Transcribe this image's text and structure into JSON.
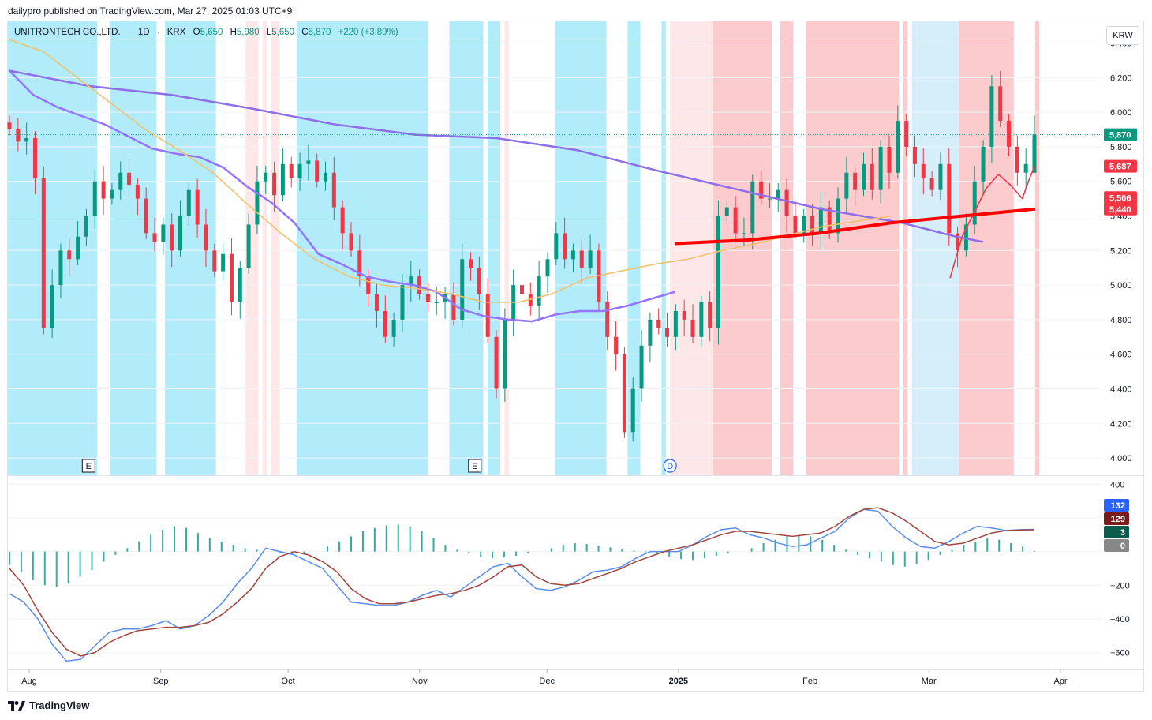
{
  "header": {
    "published": "dailypro published on TradingView.com, Mar 27, 2025 01:03 UTC+9"
  },
  "legend": {
    "symbol": "UNITRONTECH CO.,LTD.",
    "interval": "1D",
    "exchange": "KRX",
    "o_label": "O",
    "o": "5,650",
    "h_label": "H",
    "h": "5,980",
    "l_label": "L",
    "l": "5,650",
    "c_label": "C",
    "c": "5,870",
    "change": "+220 (+3.89%)"
  },
  "currency": "KRW",
  "footer": {
    "brand": "TradingView",
    "logo_icon": "tradingview-logo-icon"
  },
  "colors": {
    "up": "#089981",
    "down": "#f23645",
    "bg_blue": "#b2ebf9",
    "bg_lightblue": "#d6eefa",
    "bg_red": "#fccbcd",
    "bg_pink": "#fde7e8"
  },
  "chart_data": [
    {
      "type": "candlestick",
      "y_axis": {
        "ticks": [
          4000,
          4200,
          4400,
          4600,
          4800,
          5000,
          5200,
          5400,
          5600,
          5800,
          6000,
          6200,
          6400
        ],
        "tick_labels": [
          "4,000",
          "4,200",
          "4,400",
          "4,600",
          "4,800",
          "5,000",
          "5,200",
          "5,400",
          "5,600",
          "5,800",
          "6,000",
          "6,200",
          "6,400"
        ],
        "ylim": [
          3900,
          6480
        ]
      },
      "x_axis": {
        "labels": [
          "Aug",
          "Sep",
          "Oct",
          "Nov",
          "Dec",
          "2025",
          "Feb",
          "Mar",
          "Apr"
        ],
        "label_dates": [
          "2024-08-01",
          "2024-09-01",
          "2024-10-01",
          "2024-11-01",
          "2024-12-01",
          "2025-01-01",
          "2025-02-01",
          "2025-03-01",
          "2025-04-01"
        ]
      },
      "price_labels": [
        {
          "text": "5,870",
          "value": 5870,
          "color": "#089981"
        },
        {
          "text": "5,687",
          "value": 5687,
          "color": "#f23645"
        },
        {
          "text": "5,506",
          "value": 5506,
          "color": "#f23645"
        },
        {
          "text": "5,440",
          "value": 5440,
          "color": "#f23645"
        }
      ],
      "close_approx": [
        5900,
        5830,
        5850,
        5620,
        4750,
        5000,
        5200,
        5150,
        5280,
        5400,
        5600,
        5500,
        5550,
        5650,
        5580,
        5500,
        5300,
        5250,
        5350,
        5200,
        5400,
        5550,
        5350,
        5200,
        5080,
        5180,
        4900,
        5100,
        5350,
        5600,
        5650,
        5520,
        5700,
        5620,
        5700,
        5720,
        5600,
        5650,
        5450,
        5300,
        5200,
        5050,
        4950,
        4850,
        4700,
        4800,
        5000,
        5050,
        4950,
        4900,
        4900,
        4950,
        4800,
        5150,
        5100,
        4950,
        4700,
        4400,
        4800,
        5000,
        4950,
        4880,
        5050,
        5150,
        5300,
        5150,
        5200,
        5100,
        5200,
        4900,
        4700,
        4600,
        4150,
        4400,
        4650,
        4800,
        4750,
        4700,
        4850,
        4800,
        4700,
        4900,
        4750,
        5400,
        5450,
        5300,
        5300,
        5600,
        5500,
        5500,
        5550,
        5400,
        5300,
        5400,
        5300,
        5450,
        5300,
        5500,
        5650,
        5550,
        5700,
        5550,
        5800,
        5650,
        5950,
        5800,
        5700,
        5620,
        5550,
        5700,
        5300,
        5200,
        5350,
        5600,
        5800,
        6150,
        5950,
        5800,
        5650,
        5700,
        5870
      ],
      "background_segments": [
        {
          "start": "2024-07-22",
          "end": "2024-08-15",
          "color": "bg_blue"
        },
        {
          "start": "2024-08-15",
          "end": "2024-08-17",
          "color": "bg_blue"
        },
        {
          "start": "2024-08-20",
          "end": "2024-08-31",
          "color": "bg_blue"
        },
        {
          "start": "2024-09-02",
          "end": "2024-09-14",
          "color": "bg_blue"
        },
        {
          "start": "2024-09-21",
          "end": "2024-09-24",
          "color": "bg_pink"
        },
        {
          "start": "2024-09-25",
          "end": "2024-09-26",
          "color": "bg_pink"
        },
        {
          "start": "2024-09-27",
          "end": "2024-09-29",
          "color": "bg_pink"
        },
        {
          "start": "2024-10-03",
          "end": "2024-11-03",
          "color": "bg_blue"
        },
        {
          "start": "2024-11-08",
          "end": "2024-11-16",
          "color": "bg_blue"
        },
        {
          "start": "2024-11-17",
          "end": "2024-11-20",
          "color": "bg_blue"
        },
        {
          "start": "2024-11-21",
          "end": "2024-11-22",
          "color": "bg_pink"
        },
        {
          "start": "2024-12-03",
          "end": "2024-12-15",
          "color": "bg_blue"
        },
        {
          "start": "2024-12-20",
          "end": "2024-12-23",
          "color": "bg_blue"
        },
        {
          "start": "2024-12-28",
          "end": "2024-12-29",
          "color": "bg_blue"
        },
        {
          "start": "2024-12-30",
          "end": "2025-01-09",
          "color": "bg_pink"
        },
        {
          "start": "2025-01-09",
          "end": "2025-01-23",
          "color": "bg_red"
        },
        {
          "start": "2025-01-25",
          "end": "2025-01-28",
          "color": "bg_red"
        },
        {
          "start": "2025-01-31",
          "end": "2025-02-22",
          "color": "bg_red"
        },
        {
          "start": "2025-02-23",
          "end": "2025-02-24",
          "color": "bg_red"
        },
        {
          "start": "2025-02-25",
          "end": "2025-02-26",
          "color": "bg_lightblue"
        },
        {
          "start": "2025-02-26",
          "end": "2025-03-08",
          "color": "bg_lightblue"
        },
        {
          "start": "2025-03-08",
          "end": "2025-03-21",
          "color": "bg_red"
        },
        {
          "start": "2025-03-26",
          "end": "2025-03-27",
          "color": "bg_red"
        }
      ],
      "markers": [
        {
          "label": "E",
          "date": "2024-08-15"
        },
        {
          "label": "E",
          "date": "2024-11-14"
        },
        {
          "label": "D",
          "date": "2024-12-30"
        }
      ],
      "series": [
        {
          "type": "line",
          "color": "#9575ff",
          "points": [
            [
              0,
              6240
            ],
            [
              5,
              6100
            ],
            [
              10,
              6030
            ],
            [
              15,
              5980
            ],
            [
              20,
              5930
            ],
            [
              25,
              5860
            ],
            [
              30,
              5790
            ],
            [
              35,
              5760
            ],
            [
              40,
              5740
            ],
            [
              45,
              5680
            ],
            [
              50,
              5570
            ],
            [
              55,
              5480
            ],
            [
              60,
              5360
            ],
            [
              65,
              5180
            ],
            [
              70,
              5120
            ],
            [
              75,
              5050
            ],
            [
              80,
              5020
            ],
            [
              85,
              5000
            ],
            [
              90,
              4960
            ],
            [
              95,
              4860
            ],
            [
              100,
              4820
            ],
            [
              105,
              4800
            ],
            [
              110,
              4790
            ],
            [
              115,
              4830
            ],
            [
              120,
              4850
            ],
            [
              125,
              4850
            ],
            [
              130,
              4880
            ],
            [
              135,
              4920
            ],
            [
              140,
              4960
            ]
          ]
        },
        {
          "type": "line",
          "color": "#8e6fe8",
          "points": [
            [
              0,
              6240
            ],
            [
              15,
              6150
            ],
            [
              30,
              6100
            ],
            [
              45,
              6020
            ],
            [
              60,
              5930
            ],
            [
              75,
              5870
            ],
            [
              90,
              5850
            ],
            [
              105,
              5780
            ],
            [
              120,
              5660
            ],
            [
              135,
              5550
            ],
            [
              150,
              5440
            ],
            [
              165,
              5360
            ],
            [
              175,
              5280
            ],
            [
              180,
              5250
            ]
          ]
        },
        {
          "type": "line",
          "color": "#f0c26c",
          "points": [
            [
              0,
              6420
            ],
            [
              5,
              6350
            ],
            [
              10,
              6200
            ],
            [
              15,
              6050
            ],
            [
              20,
              5900
            ],
            [
              25,
              5780
            ],
            [
              30,
              5650
            ],
            [
              35,
              5470
            ],
            [
              40,
              5300
            ],
            [
              45,
              5150
            ],
            [
              50,
              5050
            ],
            [
              55,
              5000
            ],
            [
              60,
              4980
            ],
            [
              65,
              4950
            ],
            [
              70,
              4900
            ],
            [
              75,
              4900
            ],
            [
              80,
              4950
            ],
            [
              85,
              5040
            ],
            [
              90,
              5080
            ],
            [
              95,
              5120
            ],
            [
              100,
              5150
            ],
            [
              105,
              5200
            ],
            [
              110,
              5240
            ],
            [
              115,
              5290
            ],
            [
              120,
              5340
            ],
            [
              125,
              5370
            ],
            [
              130,
              5400
            ]
          ]
        },
        {
          "type": "line",
          "color": "#f23645",
          "points": [
            [
              0,
              5040
            ],
            [
              10,
              5280
            ],
            [
              20,
              5420
            ],
            [
              30,
              5560
            ],
            [
              40,
              5640
            ],
            [
              50,
              5580
            ],
            [
              60,
              5500
            ],
            [
              65,
              5600
            ],
            [
              70,
              5687
            ]
          ]
        },
        {
          "type": "line",
          "color": "#ff0000",
          "points": [
            [
              0,
              5240
            ],
            [
              20,
              5260
            ],
            [
              40,
              5300
            ],
            [
              60,
              5360
            ],
            [
              80,
              5400
            ],
            [
              100,
              5440
            ]
          ]
        }
      ]
    },
    {
      "type": "macd",
      "y_axis": {
        "ticks": [
          -600,
          -400,
          -200,
          0,
          200,
          400
        ],
        "tick_labels": [
          "−600",
          "−400",
          "−200",
          "0",
          "200",
          "400"
        ],
        "ylim": [
          -700,
          420
        ]
      },
      "value_labels": [
        {
          "text": "132",
          "value": 132,
          "color": "#2962ff"
        },
        {
          "text": "129",
          "value": 129,
          "color": "#7b1b1b"
        },
        {
          "text": "3",
          "value": 3,
          "color": "#0b5c4d"
        },
        {
          "text": "0",
          "value": 0,
          "color": "#888888"
        }
      ],
      "macd_line": [
        -250,
        -300,
        -400,
        -550,
        -650,
        -640,
        -560,
        -480,
        -460,
        -460,
        -440,
        -410,
        -460,
        -440,
        -380,
        -300,
        -190,
        -100,
        20,
        0,
        -20,
        -60,
        -100,
        -200,
        -300,
        -310,
        -320,
        -320,
        -300,
        -260,
        -230,
        -270,
        -210,
        -150,
        -90,
        -70,
        -150,
        -220,
        -230,
        -210,
        -170,
        -120,
        -110,
        -90,
        -40,
        0,
        0,
        0,
        40,
        90,
        130,
        140,
        100,
        80,
        50,
        30,
        40,
        80,
        120,
        200,
        250,
        240,
        150,
        80,
        30,
        20,
        60,
        110,
        150,
        140,
        125,
        130,
        132
      ],
      "signal_line": [
        -100,
        -200,
        -350,
        -480,
        -580,
        -620,
        -600,
        -540,
        -500,
        -470,
        -460,
        -450,
        -450,
        -440,
        -420,
        -370,
        -300,
        -220,
        -100,
        -30,
        0,
        -20,
        -60,
        -120,
        -220,
        -280,
        -310,
        -310,
        -300,
        -280,
        -260,
        -250,
        -230,
        -200,
        -150,
        -90,
        -80,
        -150,
        -190,
        -200,
        -190,
        -160,
        -130,
        -100,
        -60,
        -30,
        0,
        20,
        40,
        70,
        100,
        120,
        120,
        110,
        100,
        90,
        100,
        110,
        150,
        210,
        250,
        260,
        230,
        180,
        120,
        60,
        40,
        50,
        80,
        110,
        125,
        128,
        129
      ],
      "histogram": [
        -80,
        -120,
        -170,
        -200,
        -210,
        -190,
        -150,
        -110,
        -60,
        -20,
        20,
        60,
        100,
        130,
        150,
        140,
        110,
        80,
        60,
        40,
        20,
        10,
        0,
        -10,
        -20,
        -10,
        0,
        30,
        60,
        90,
        120,
        140,
        155,
        160,
        150,
        120,
        80,
        40,
        10,
        -10,
        -30,
        -40,
        -35,
        -25,
        -10,
        0,
        20,
        40,
        50,
        45,
        35,
        25,
        15,
        5,
        -5,
        -15,
        -30,
        -45,
        -50,
        -40,
        -25,
        -10,
        0,
        20,
        50,
        70,
        90,
        100,
        90,
        70,
        40,
        10,
        -20,
        -40,
        -60,
        -80,
        -90,
        -75,
        -50,
        -20,
        10,
        40,
        60,
        80,
        70,
        50,
        30,
        3
      ]
    }
  ]
}
